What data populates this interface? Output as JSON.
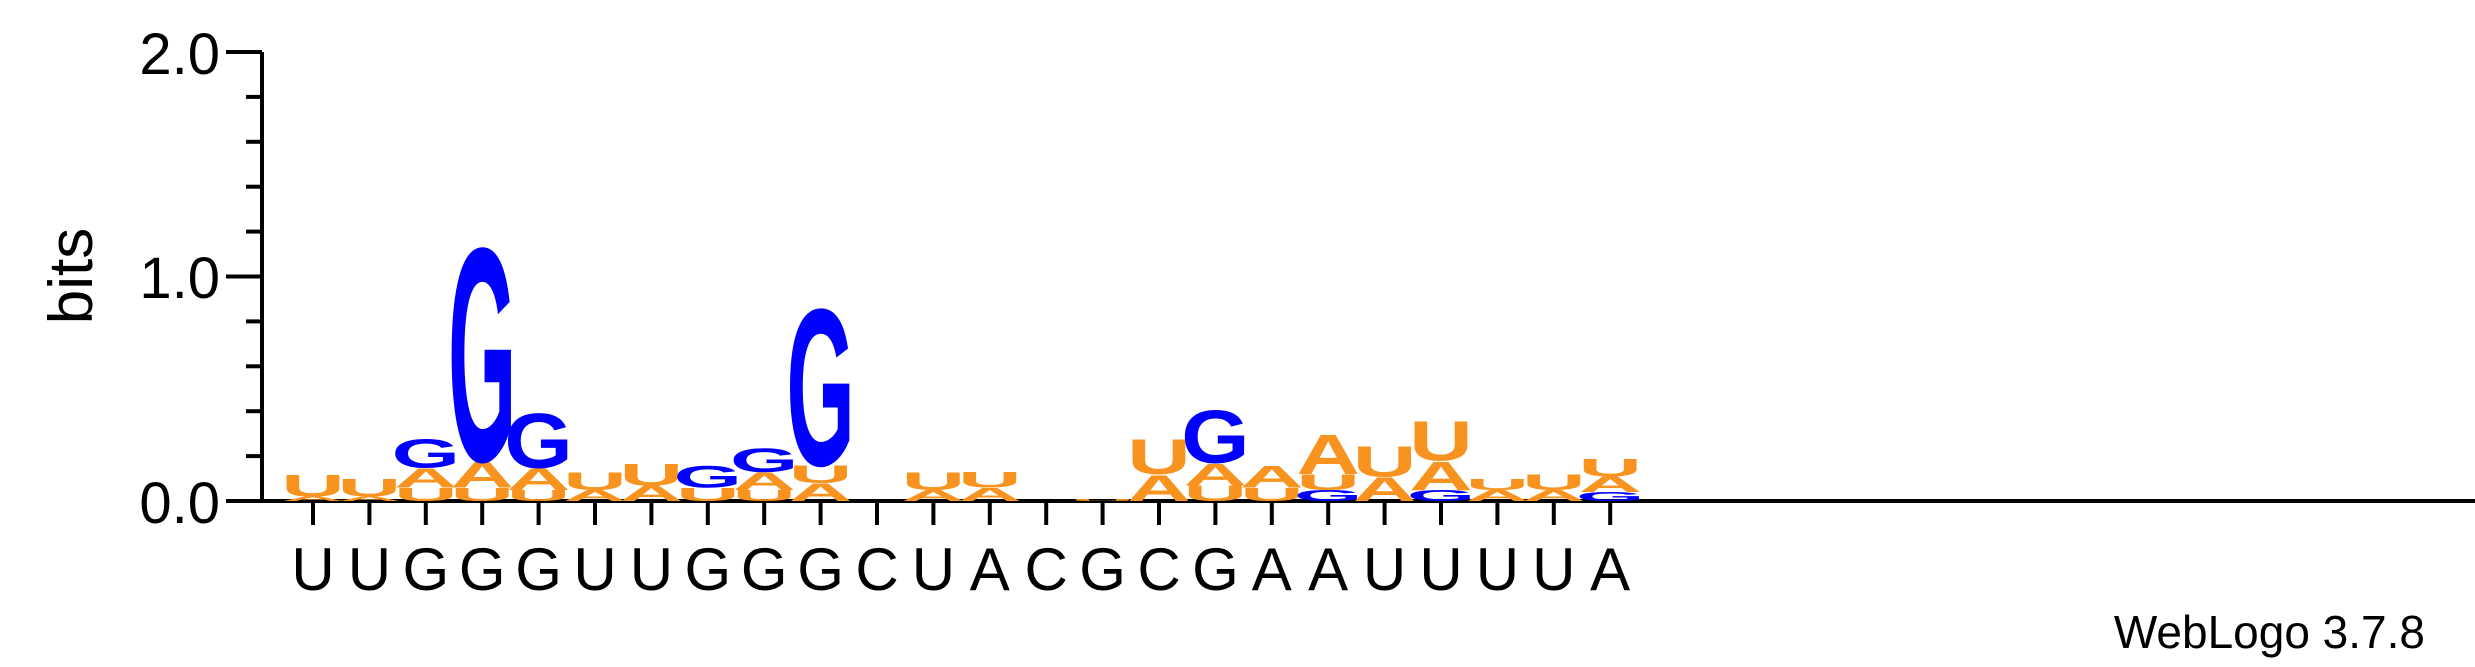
{
  "chart_data": {
    "type": "sequence_logo",
    "ylabel": "bits",
    "ylim": [
      0,
      2.0
    ],
    "yticks": [
      "0.0",
      "1.0",
      "2.0"
    ],
    "sequence": [
      "U",
      "U",
      "G",
      "G",
      "G",
      "U",
      "U",
      "G",
      "G",
      "G",
      "C",
      "U",
      "A",
      "C",
      "G",
      "C",
      "G",
      "A",
      "A",
      "U",
      "U",
      "U",
      "U",
      "A"
    ],
    "positions": [
      {
        "stack": [
          [
            "A",
            0.02
          ],
          [
            "U",
            0.1
          ]
        ]
      },
      {
        "stack": [
          [
            "A",
            0.02
          ],
          [
            "U",
            0.08
          ]
        ]
      },
      {
        "stack": [
          [
            "U",
            0.06
          ],
          [
            "A",
            0.09
          ],
          [
            "G",
            0.13
          ]
        ]
      },
      {
        "stack": [
          [
            "U",
            0.06
          ],
          [
            "A",
            0.12
          ],
          [
            "G",
            0.98
          ]
        ]
      },
      {
        "stack": [
          [
            "U",
            0.05
          ],
          [
            "A",
            0.1
          ],
          [
            "G",
            0.25
          ]
        ]
      },
      {
        "stack": [
          [
            "A",
            0.05
          ],
          [
            "U",
            0.08
          ]
        ]
      },
      {
        "stack": [
          [
            "A",
            0.07
          ],
          [
            "U",
            0.1
          ]
        ]
      },
      {
        "stack": [
          [
            "U",
            0.06
          ],
          [
            "G",
            0.1
          ]
        ]
      },
      {
        "stack": [
          [
            "U",
            0.05
          ],
          [
            "A",
            0.08
          ],
          [
            "G",
            0.11
          ]
        ]
      },
      {
        "stack": [
          [
            "A",
            0.08
          ],
          [
            "U",
            0.08
          ],
          [
            "G",
            0.72
          ]
        ]
      },
      {
        "stack": []
      },
      {
        "stack": [
          [
            "A",
            0.05
          ],
          [
            "U",
            0.08
          ]
        ]
      },
      {
        "stack": [
          [
            "A",
            0.06
          ],
          [
            "U",
            0.07
          ]
        ]
      },
      {
        "stack": []
      },
      {
        "stack": [
          [
            "U",
            0.01
          ]
        ]
      },
      {
        "stack": [
          [
            "A",
            0.12
          ],
          [
            "U",
            0.16
          ]
        ]
      },
      {
        "stack": [
          [
            "U",
            0.07
          ],
          [
            "A",
            0.1
          ],
          [
            "G",
            0.24
          ]
        ]
      },
      {
        "stack": [
          [
            "U",
            0.06
          ],
          [
            "A",
            0.1
          ]
        ]
      },
      {
        "stack": [
          [
            "G",
            0.05
          ],
          [
            "U",
            0.07
          ],
          [
            "A",
            0.18
          ]
        ]
      },
      {
        "stack": [
          [
            "A",
            0.11
          ],
          [
            "U",
            0.14
          ]
        ]
      },
      {
        "stack": [
          [
            "G",
            0.05
          ],
          [
            "A",
            0.13
          ],
          [
            "U",
            0.18
          ]
        ]
      },
      {
        "stack": [
          [
            "A",
            0.05
          ],
          [
            "U",
            0.05
          ]
        ]
      },
      {
        "stack": [
          [
            "A",
            0.05
          ],
          [
            "U",
            0.07
          ]
        ]
      },
      {
        "stack": [
          [
            "G",
            0.04
          ],
          [
            "A",
            0.07
          ],
          [
            "U",
            0.08
          ]
        ]
      }
    ]
  },
  "colors": {
    "A": "#f7931e",
    "U": "#f7931e",
    "G": "#0000ff",
    "C": "#0000ff"
  },
  "footer": "WebLogo 3.7.8"
}
